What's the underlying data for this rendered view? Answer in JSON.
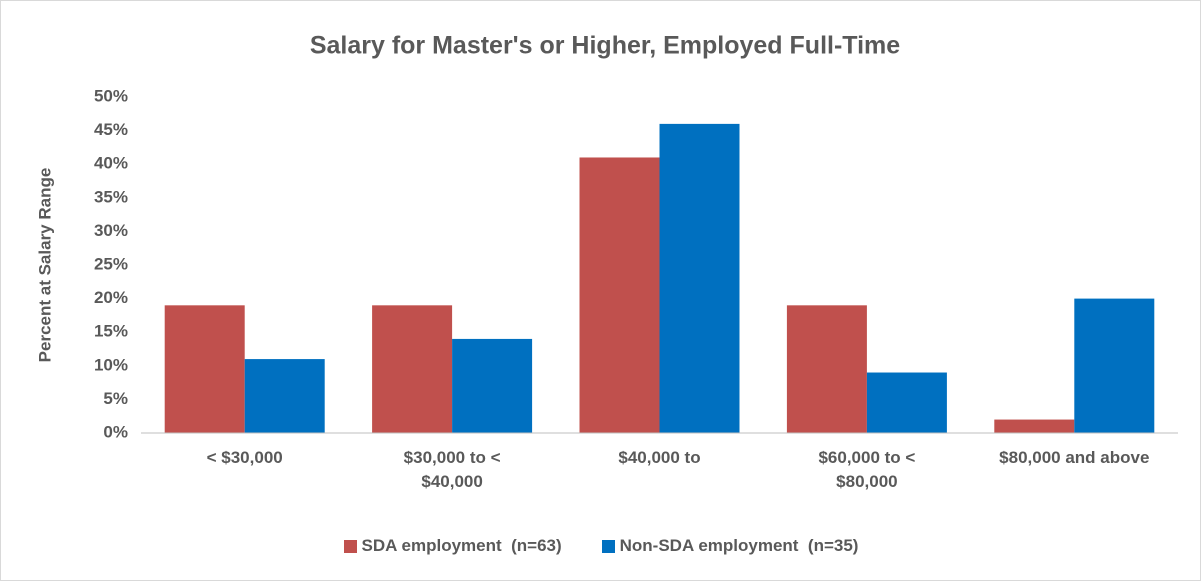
{
  "chart_data": {
    "type": "bar",
    "title": "Salary for Master's or Higher, Employed Full-Time",
    "ylabel": "Percent at Salary Range",
    "categories": [
      "< $30,000",
      "$30,000 to <\n$40,000",
      "$40,000 to",
      "$60,000 to <\n$80,000",
      "$80,000 and above"
    ],
    "series": [
      {
        "name": "SDA employment  (n=63)",
        "color": "#c0504d",
        "values": [
          19,
          19,
          41,
          19,
          2
        ]
      },
      {
        "name": "Non-SDA employment  (n=35)",
        "color": "#0070c0",
        "values": [
          11,
          14,
          46,
          9,
          20
        ]
      }
    ],
    "ylim": [
      0,
      50
    ],
    "yticks": [
      {
        "value": 0,
        "label": "0%"
      },
      {
        "value": 5,
        "label": "5%"
      },
      {
        "value": 10,
        "label": "10%"
      },
      {
        "value": 15,
        "label": "15%"
      },
      {
        "value": 20,
        "label": "20%"
      },
      {
        "value": 25,
        "label": "25%"
      },
      {
        "value": 30,
        "label": "30%"
      },
      {
        "value": 35,
        "label": "35%"
      },
      {
        "value": 40,
        "label": "40%"
      },
      {
        "value": 45,
        "label": "45%"
      },
      {
        "value": 50,
        "label": "50%"
      }
    ],
    "grid": false,
    "legend": "bottom"
  }
}
